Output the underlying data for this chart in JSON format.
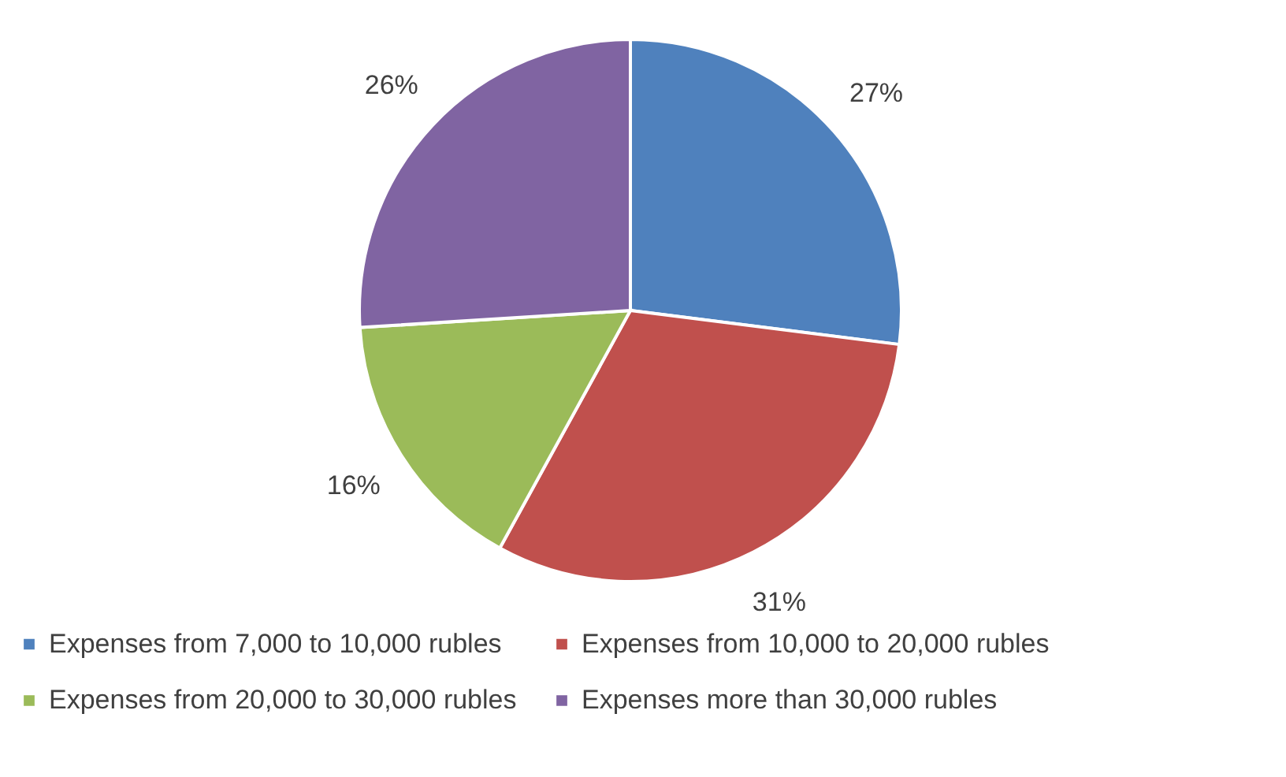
{
  "chart_data": {
    "type": "pie",
    "categories": [
      "Expenses from 7,000 to 10,000 rubles",
      "Expenses from 10,000 to 20,000 rubles",
      "Expenses from 20,000 to 30,000 rubles",
      "Expenses more than 30,000 rubles"
    ],
    "values": [
      27,
      31,
      16,
      26
    ],
    "colors": [
      "#4f81bd",
      "#c0504d",
      "#9bbb59",
      "#8064a2"
    ],
    "value_labels": [
      "27%",
      "31%",
      "16%",
      "26%"
    ],
    "legend": "bottom"
  }
}
